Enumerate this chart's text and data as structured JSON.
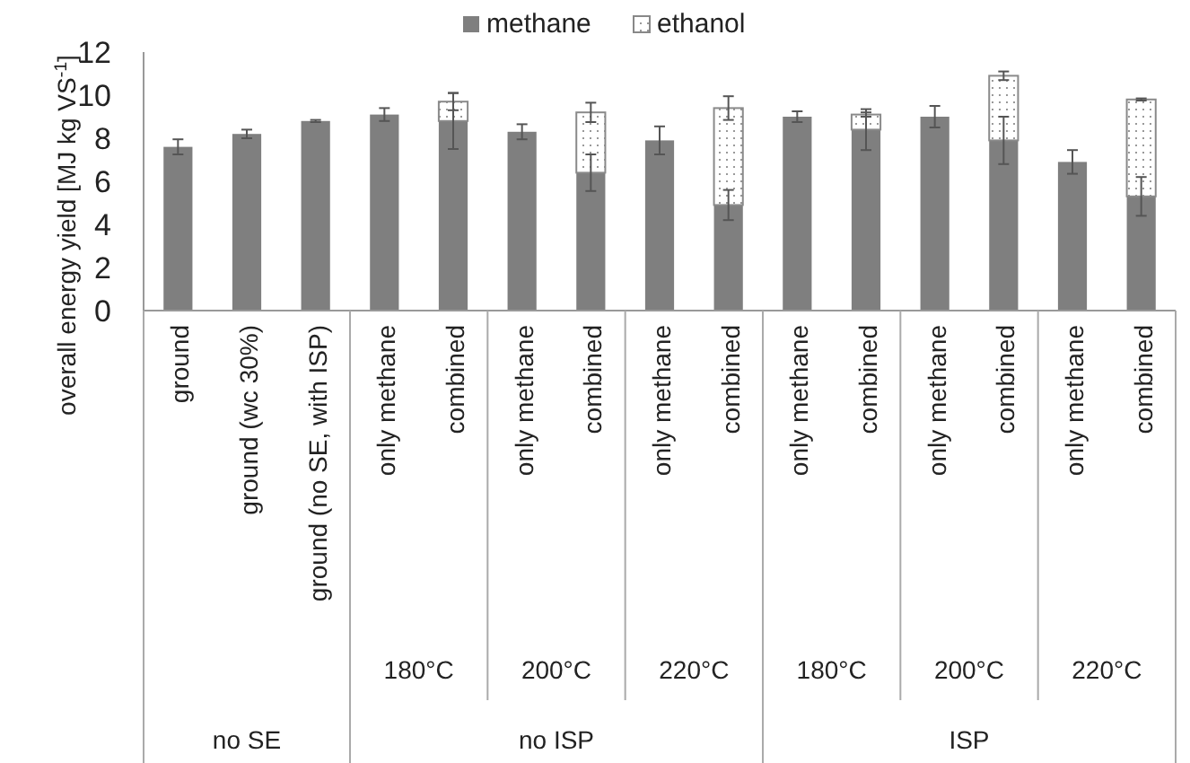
{
  "chart_data": {
    "type": "bar",
    "stacked": true,
    "ylabel": "overall energy yield [MJ kg VS$^{-1}$]",
    "categories": [
      "ground",
      "ground (wc 30%)",
      "ground (no SE, with ISP)",
      "only methane",
      "combined",
      "only methane",
      "combined",
      "only methane",
      "combined",
      "only methane",
      "combined",
      "only methane",
      "combined",
      "only methane",
      "combined"
    ],
    "series": [
      {
        "name": "methane",
        "color": "#7f7f7f",
        "values": [
          7.6,
          8.2,
          8.8,
          9.1,
          8.8,
          8.3,
          6.4,
          7.9,
          4.9,
          9.0,
          8.4,
          9.0,
          7.9,
          6.9,
          5.3
        ],
        "errors": [
          0.35,
          0.2,
          0.05,
          0.3,
          1.3,
          0.35,
          0.85,
          0.65,
          0.7,
          0.25,
          0.95,
          0.5,
          1.1,
          0.55,
          0.9
        ]
      },
      {
        "name": "ethanol",
        "color": "#ffffff",
        "values": [
          null,
          null,
          null,
          null,
          0.9,
          null,
          2.8,
          null,
          4.5,
          null,
          0.7,
          null,
          3.0,
          null,
          4.5
        ],
        "errors": [
          null,
          null,
          null,
          null,
          0.4,
          null,
          0.45,
          null,
          0.55,
          null,
          0.1,
          null,
          0.2,
          null,
          0.05
        ]
      }
    ],
    "ylim": [
      0,
      12
    ],
    "yticks": [
      0,
      2,
      4,
      6,
      8,
      10,
      12
    ],
    "legend": "top",
    "grid": false,
    "annotations": [
      "180°C",
      "200°C",
      "220°C",
      "180°C",
      "200°C",
      "220°C",
      "no SE",
      "no ISP",
      "ISP"
    ]
  }
}
